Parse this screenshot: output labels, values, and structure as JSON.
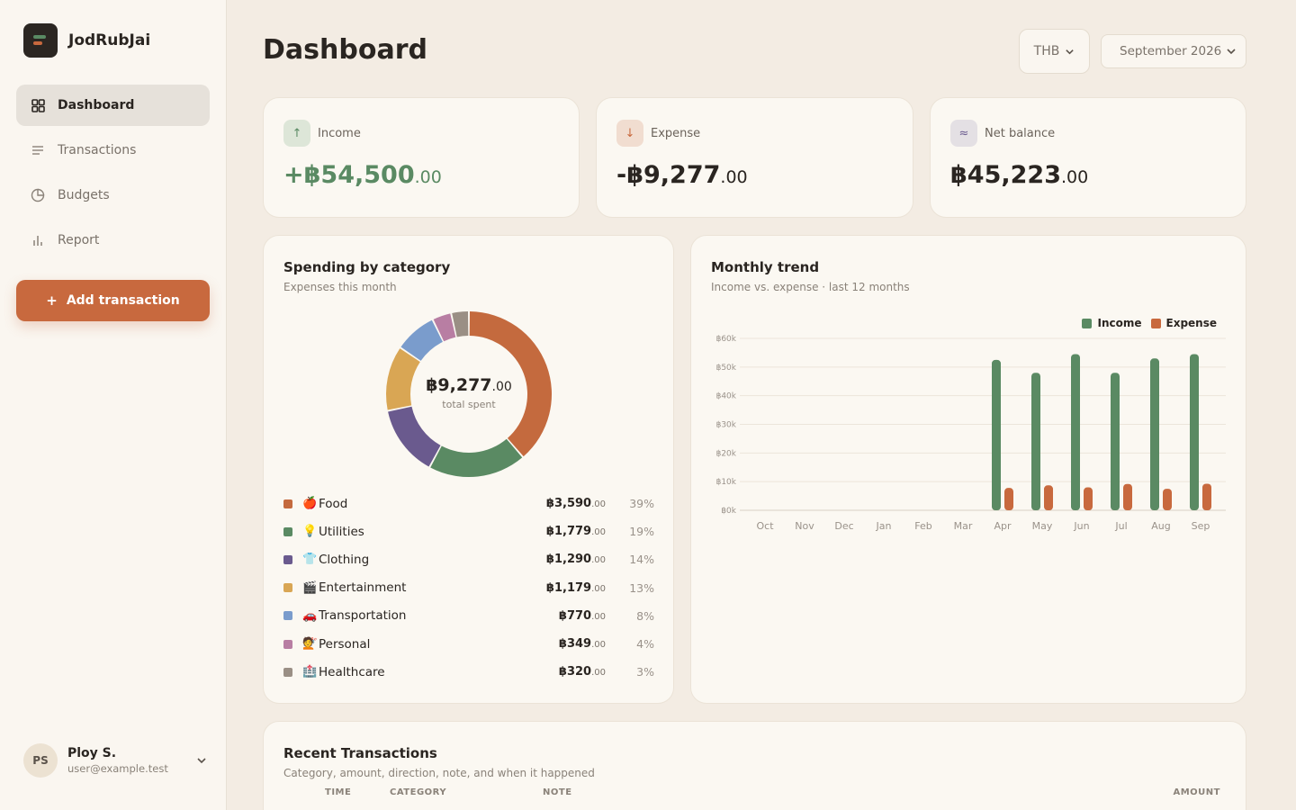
{
  "app": {
    "name": "JodRubJai"
  },
  "sidebar": {
    "items": [
      {
        "label": "Dashboard",
        "icon": "grid-icon",
        "active": true
      },
      {
        "label": "Transactions",
        "icon": "list-icon",
        "active": false
      },
      {
        "label": "Budgets",
        "icon": "pie-icon",
        "active": false
      },
      {
        "label": "Report",
        "icon": "bar-chart-icon",
        "active": false
      }
    ],
    "add_button": "Add transaction",
    "add_icon": "+",
    "user": {
      "initials": "PS",
      "name": "Ploy S.",
      "email": "user@example.test"
    }
  },
  "header": {
    "title": "Dashboard",
    "currency": "THB",
    "month": "September 2026"
  },
  "stats": [
    {
      "label": "Income",
      "icon": "↑",
      "main": "+฿54,500",
      "cents": ".00",
      "color": "#5a8a63",
      "icon_bg": "#dde6d8"
    },
    {
      "label": "Expense",
      "icon": "↓",
      "main": "-฿9,277",
      "cents": ".00",
      "color": "#2a2521",
      "icon_bg": "#f1ddd0"
    },
    {
      "label": "Net balance",
      "icon": "≈",
      "main": "฿45,223",
      "cents": ".00",
      "color": "#2a2521",
      "icon_bg": "#e4e0e4"
    }
  ],
  "spending": {
    "title": "Spending by category",
    "subtitle": "Expenses this month",
    "total_main": "฿9,277",
    "total_cents": ".00",
    "total_label": "total spent",
    "categories": [
      {
        "emoji": "🍎",
        "name": "Food",
        "amount": "฿3,590",
        "cents": ".00",
        "pct": "39%",
        "value": 3590,
        "color": "#c46a3e"
      },
      {
        "emoji": "💡",
        "name": "Utilities",
        "amount": "฿1,779",
        "cents": ".00",
        "pct": "19%",
        "value": 1779,
        "color": "#5a8a63"
      },
      {
        "emoji": "👕",
        "name": "Clothing",
        "amount": "฿1,290",
        "cents": ".00",
        "pct": "14%",
        "value": 1290,
        "color": "#6a5a8e"
      },
      {
        "emoji": "🎬",
        "name": "Entertainment",
        "amount": "฿1,179",
        "cents": ".00",
        "pct": "13%",
        "value": 1179,
        "color": "#d9a654"
      },
      {
        "emoji": "🚗",
        "name": "Transportation",
        "amount": "฿770",
        "cents": ".00",
        "pct": "8%",
        "value": 770,
        "color": "#7a9ccc"
      },
      {
        "emoji": "💇",
        "name": "Personal",
        "amount": "฿349",
        "cents": ".00",
        "pct": "4%",
        "value": 349,
        "color": "#b87ea3"
      },
      {
        "emoji": "🏥",
        "name": "Healthcare",
        "amount": "฿320",
        "cents": ".00",
        "pct": "3%",
        "value": 320,
        "color": "#9a8f85"
      }
    ]
  },
  "trend": {
    "title": "Monthly trend",
    "subtitle": "Income vs. expense · last 12 months",
    "legend": {
      "income": "Income",
      "expense": "Expense"
    },
    "colors": {
      "income": "#5a8a63",
      "expense": "#c8693e"
    }
  },
  "chart_data": {
    "type": "bar",
    "categories": [
      "Oct",
      "Nov",
      "Dec",
      "Jan",
      "Feb",
      "Mar",
      "Apr",
      "May",
      "Jun",
      "Jul",
      "Aug",
      "Sep"
    ],
    "series": [
      {
        "name": "Income",
        "values": [
          0,
          0,
          0,
          0,
          0,
          0,
          52500,
          48000,
          54500,
          48000,
          53000,
          54500
        ]
      },
      {
        "name": "Expense",
        "values": [
          0,
          0,
          0,
          0,
          0,
          0,
          7800,
          8700,
          8000,
          9200,
          7500,
          9277
        ]
      }
    ],
    "yticks": [
      "฿60k",
      "฿50k",
      "฿40k",
      "฿30k",
      "฿20k",
      "฿10k",
      "฿0k"
    ],
    "ylim": [
      0,
      60000
    ],
    "grid": true,
    "legend_position": "top-right"
  },
  "transactions": {
    "title": "Recent Transactions",
    "subtitle": "Category, amount, direction, note, and when it happened",
    "columns": {
      "time": "TIME",
      "category": "CATEGORY",
      "note": "NOTE",
      "amount": "AMOUNT"
    }
  }
}
